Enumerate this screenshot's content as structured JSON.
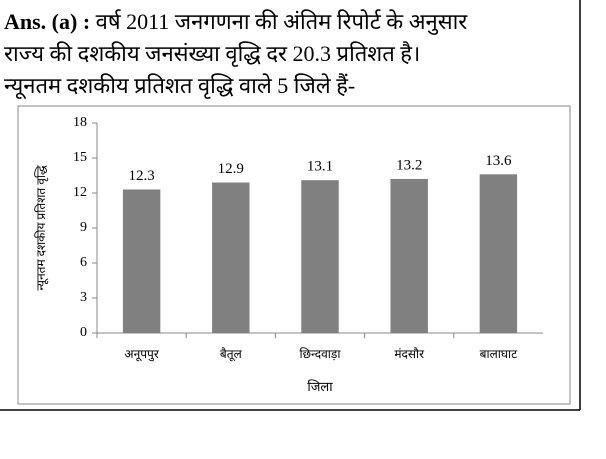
{
  "text": {
    "answer_label": "Ans. (a) :",
    "lines": [
      "वर्ष 2011 जनगणना की अंतिम रिपोर्ट के अनुसार",
      "राज्य की दशकीय जनसंख्या वृद्धि दर 20.3 प्रतिशत है।",
      "न्यूनतम दशकीय प्रतिशत वृद्धि वाले 5 जिले हैं-"
    ]
  },
  "chart_data": {
    "type": "bar",
    "y_label": "न्यूनतम दशकीय प्रतिशत वृद्धि",
    "x_label": "जिला",
    "categories": [
      "अनूपपुर",
      "बैतूल",
      "छिन्दवाड़ा",
      "मंदसौर",
      "बालाघाट"
    ],
    "values": [
      12.3,
      12.9,
      13.1,
      13.2,
      13.6
    ],
    "color": "#808080",
    "ylim": [
      0,
      18
    ],
    "yticks": [
      0,
      3,
      6,
      9,
      12,
      15,
      18
    ],
    "grid": false
  }
}
